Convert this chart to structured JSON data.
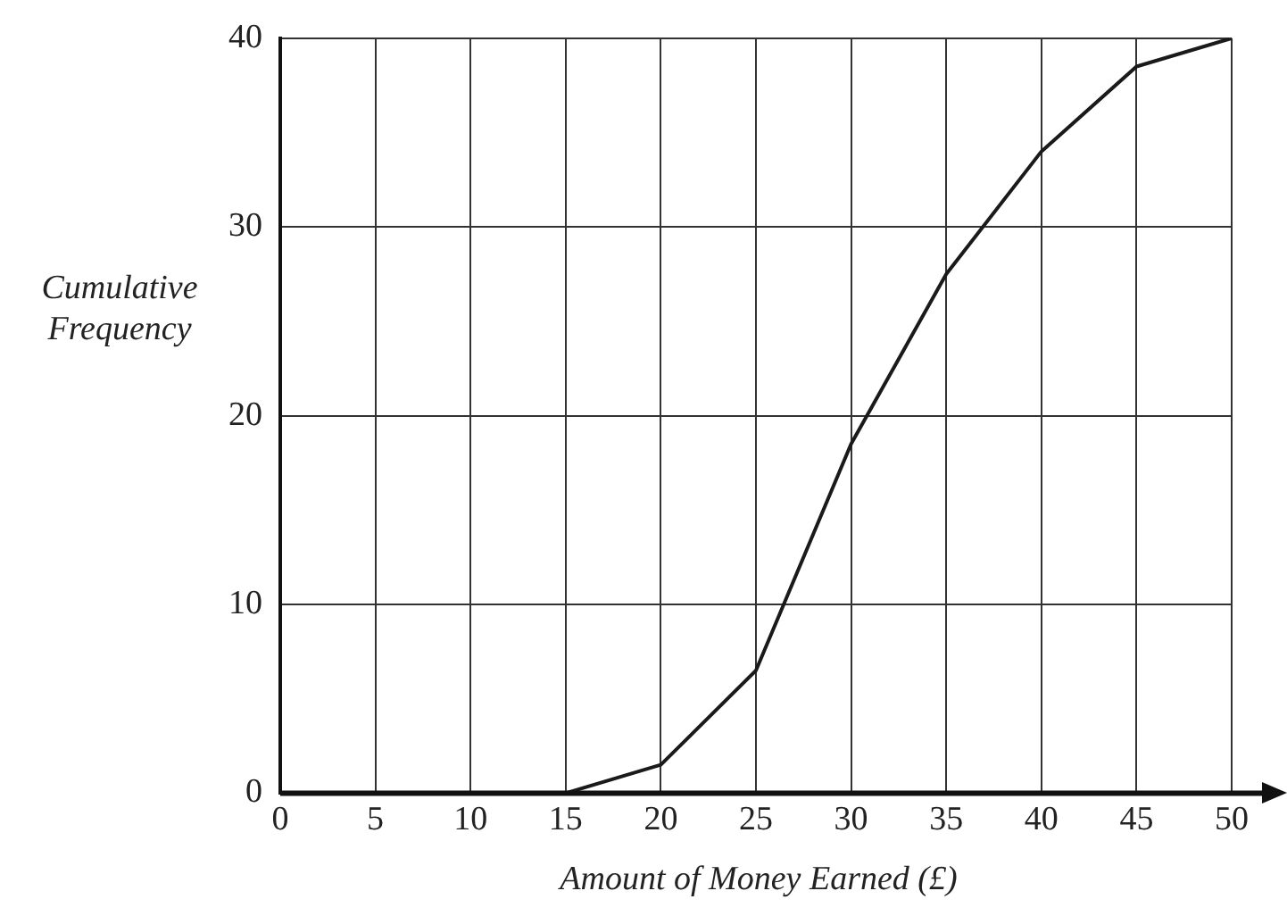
{
  "chart_data": {
    "type": "line",
    "xlabel": "Amount of Money Earned (£)",
    "ylabel": "Cumulative Frequency",
    "x": [
      15,
      20,
      25,
      30,
      35,
      40,
      45,
      50
    ],
    "series": [
      {
        "color": "#1a1a1a",
        "values": [
          0,
          1.5,
          6.5,
          18.5,
          27.5,
          34,
          38.5,
          40
        ]
      }
    ],
    "xlim": [
      0,
      50
    ],
    "xticks": [
      0,
      5,
      10,
      15,
      20,
      25,
      30,
      35,
      40,
      45,
      50
    ],
    "ylim": [
      0,
      40
    ],
    "yticks": [
      0,
      10,
      20,
      30,
      40
    ],
    "grid": true,
    "legend": false,
    "marker": "none",
    "line_style": "solid"
  }
}
